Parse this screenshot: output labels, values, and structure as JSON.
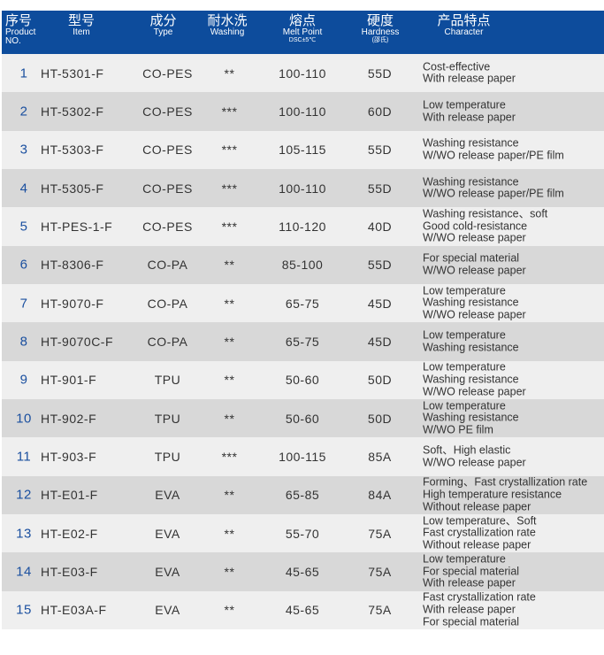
{
  "header": {
    "no": {
      "cn": "序号",
      "en": "Product NO."
    },
    "item": {
      "cn": "型号",
      "en": "Item"
    },
    "type": {
      "cn": "成分",
      "en": "Type"
    },
    "washing": {
      "cn": "耐水洗",
      "en": "Washing"
    },
    "melt": {
      "cn": "熔点",
      "en": "Melt Point",
      "sub": "DSC±5℃"
    },
    "hardness": {
      "cn": "硬度",
      "en": "Hardness",
      "sub": "(邵氏)"
    },
    "character": {
      "cn": "产品特点",
      "en": "Character"
    }
  },
  "rows": [
    {
      "no": "1",
      "item": "HT-5301-F",
      "type": "CO-PES",
      "washing": "**",
      "melt": "100-110",
      "hardness": "55D",
      "character": [
        "Cost-effective",
        "With release paper"
      ]
    },
    {
      "no": "2",
      "item": "HT-5302-F",
      "type": "CO-PES",
      "washing": "***",
      "melt": "100-110",
      "hardness": "60D",
      "character": [
        "Low temperature",
        "With release paper"
      ]
    },
    {
      "no": "3",
      "item": "HT-5303-F",
      "type": "CO-PES",
      "washing": "***",
      "melt": "105-115",
      "hardness": "55D",
      "character": [
        "Washing resistance",
        "W/WO release paper/PE film"
      ]
    },
    {
      "no": "4",
      "item": "HT-5305-F",
      "type": "CO-PES",
      "washing": "***",
      "melt": "100-110",
      "hardness": "55D",
      "character": [
        "Washing resistance",
        "W/WO release paper/PE film"
      ]
    },
    {
      "no": "5",
      "item": "HT-PES-1-F",
      "type": "CO-PES",
      "washing": "***",
      "melt": "110-120",
      "hardness": "40D",
      "character": [
        "Washing resistance、soft",
        "Good cold-resistance",
        "W/WO release paper"
      ]
    },
    {
      "no": "6",
      "item": "HT-8306-F",
      "type": "CO-PA",
      "washing": "**",
      "melt": "85-100",
      "hardness": "55D",
      "character": [
        "For special material",
        "W/WO release paper"
      ]
    },
    {
      "no": "7",
      "item": "HT-9070-F",
      "type": "CO-PA",
      "washing": "**",
      "melt": "65-75",
      "hardness": "45D",
      "character": [
        "Low temperature",
        "Washing resistance",
        "W/WO release paper"
      ]
    },
    {
      "no": "8",
      "item": "HT-9070C-F",
      "type": "CO-PA",
      "washing": "**",
      "melt": "65-75",
      "hardness": "45D",
      "character": [
        "Low temperature",
        "Washing resistance"
      ]
    },
    {
      "no": "9",
      "item": "HT-901-F",
      "type": "TPU",
      "washing": "**",
      "melt": "50-60",
      "hardness": "50D",
      "character": [
        "Low temperature",
        "Washing resistance",
        "W/WO release paper"
      ]
    },
    {
      "no": "10",
      "item": "HT-902-F",
      "type": "TPU",
      "washing": "**",
      "melt": "50-60",
      "hardness": "50D",
      "character": [
        "Low temperature",
        "Washing resistance",
        "W/WO PE film"
      ]
    },
    {
      "no": "11",
      "item": "HT-903-F",
      "type": "TPU",
      "washing": "***",
      "melt": "100-115",
      "hardness": "85A",
      "character": [
        "Soft、High elastic",
        "W/WO release paper"
      ]
    },
    {
      "no": "12",
      "item": "HT-E01-F",
      "type": "EVA",
      "washing": "**",
      "melt": "65-85",
      "hardness": "84A",
      "character": [
        "Forming、Fast crystallization rate",
        "High temperature resistance",
        "Without release paper"
      ]
    },
    {
      "no": "13",
      "item": "HT-E02-F",
      "type": "EVA",
      "washing": "**",
      "melt": "55-70",
      "hardness": "75A",
      "character": [
        "Low temperature、Soft",
        "Fast crystallization rate",
        "Without release paper"
      ]
    },
    {
      "no": "14",
      "item": "HT-E03-F",
      "type": "EVA",
      "washing": "**",
      "melt": "45-65",
      "hardness": "75A",
      "character": [
        "Low temperature",
        "For special material",
        "With release paper"
      ]
    },
    {
      "no": "15",
      "item": "HT-E03A-F",
      "type": "EVA",
      "washing": "**",
      "melt": "45-65",
      "hardness": "75A",
      "character": [
        "Fast crystallization rate",
        "With release paper",
        "For special material"
      ]
    }
  ]
}
